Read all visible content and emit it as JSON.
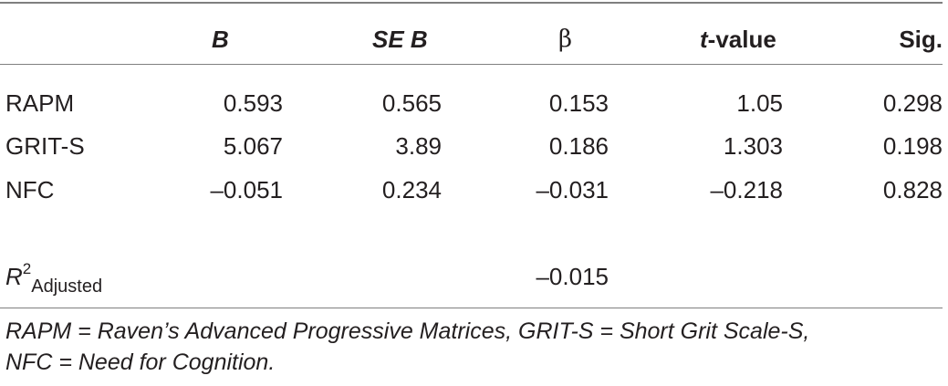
{
  "table": {
    "headers": {
      "b": "B",
      "se_b": "SE B",
      "beta": "β",
      "t_italic": "t",
      "t_rest": "-value",
      "sig": "Sig."
    },
    "rows": [
      {
        "label": "RAPM",
        "b": "0.593",
        "se_b": "0.565",
        "beta": "0.153",
        "t": "1.05",
        "sig": "0.298"
      },
      {
        "label": "GRIT-S",
        "b": "5.067",
        "se_b": "3.89",
        "beta": "0.186",
        "t": "1.303",
        "sig": "0.198"
      },
      {
        "label": "NFC",
        "b": "–0.051",
        "se_b": "0.234",
        "beta": "–0.031",
        "t": "–0.218",
        "sig": "0.828"
      }
    ],
    "r2": {
      "label_base": "R",
      "label_sup": "2",
      "label_sub": "Adjusted",
      "value": "–0.015"
    }
  },
  "footnote": {
    "line1": "RAPM = Raven’s Advanced Progressive Matrices, GRIT-S = Short Grit Scale-S,",
    "line2": "NFC = Need for Cognition."
  }
}
